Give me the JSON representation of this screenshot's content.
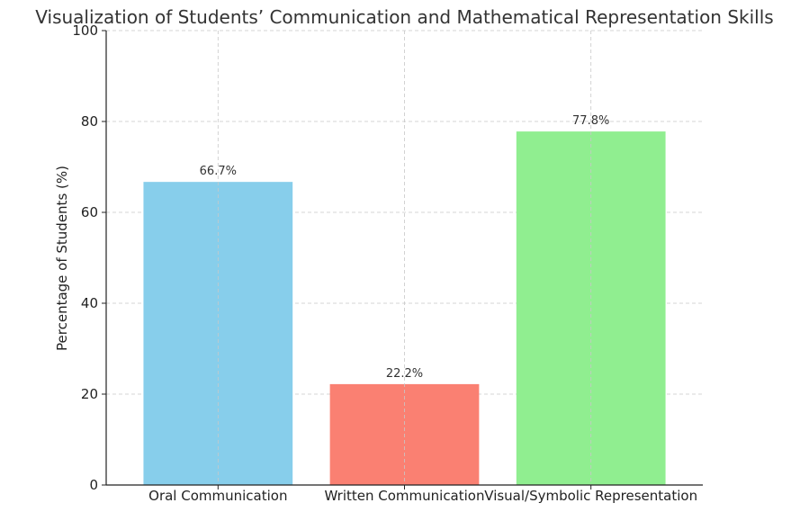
{
  "chart_data": {
    "type": "bar",
    "title": "Visualization of Students’ Communication and Mathematical Representation Skills",
    "xlabel": "",
    "ylabel": "Percentage of Students (%)",
    "categories": [
      "Oral Communication",
      "Written Communication",
      "Visual/Symbolic Representation"
    ],
    "values": [
      66.7,
      22.2,
      77.8
    ],
    "data_labels": [
      "66.7%",
      "22.2%",
      "77.8%"
    ],
    "colors": [
      "#87ceeb",
      "#fa8072",
      "#90ee90"
    ],
    "ylim": [
      0,
      100
    ],
    "yticks": [
      0,
      20,
      40,
      60,
      80,
      100
    ],
    "ytick_labels": [
      "0",
      "20",
      "40",
      "60",
      "80",
      "100"
    ],
    "grid": true,
    "legend": "none"
  }
}
